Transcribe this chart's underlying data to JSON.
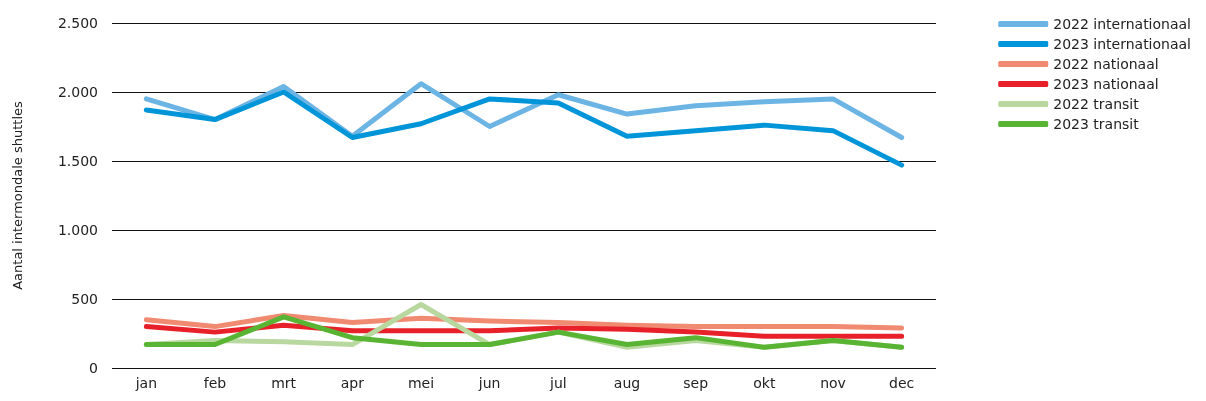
{
  "chart_data": {
    "type": "line",
    "ylabel": "Aantal intermondale shuttles",
    "categories": [
      "jan",
      "feb",
      "mrt",
      "apr",
      "mei",
      "jun",
      "jul",
      "aug",
      "sep",
      "okt",
      "nov",
      "dec"
    ],
    "series": [
      {
        "name": "2022 internationaal",
        "color": "#6cb4e4",
        "values": [
          1950,
          1800,
          2040,
          1680,
          2060,
          1750,
          1980,
          1840,
          1900,
          1930,
          1950,
          1670
        ]
      },
      {
        "name": "2023 internationaal",
        "color": "#0095d9",
        "values": [
          1870,
          1800,
          2000,
          1670,
          1770,
          1950,
          1920,
          1680,
          1720,
          1760,
          1720,
          1470
        ]
      },
      {
        "name": "2022 nationaal",
        "color": "#f08a70",
        "values": [
          350,
          300,
          380,
          330,
          360,
          340,
          330,
          310,
          300,
          300,
          300,
          290
        ]
      },
      {
        "name": "2023 nationaal",
        "color": "#e8202a",
        "values": [
          300,
          260,
          310,
          270,
          270,
          270,
          290,
          280,
          260,
          230,
          230,
          230
        ]
      },
      {
        "name": "2022 transit",
        "color": "#b8d8a0",
        "values": [
          170,
          200,
          190,
          170,
          460,
          170,
          260,
          150,
          200,
          150,
          200,
          150
        ]
      },
      {
        "name": "2023 transit",
        "color": "#5ab434",
        "values": [
          170,
          170,
          370,
          220,
          170,
          170,
          260,
          170,
          220,
          150,
          200,
          150
        ]
      }
    ],
    "ylim": [
      0,
      2500
    ],
    "yticks": [
      {
        "value": 0,
        "label": "0"
      },
      {
        "value": 500,
        "label": "500"
      },
      {
        "value": 1000,
        "label": "1.000"
      },
      {
        "value": 1500,
        "label": "1.500"
      },
      {
        "value": 2000,
        "label": "2.000"
      },
      {
        "value": 2500,
        "label": "2.500"
      }
    ],
    "grid": "y",
    "legend": "top right",
    "marker": "none",
    "line_style": "solid"
  }
}
